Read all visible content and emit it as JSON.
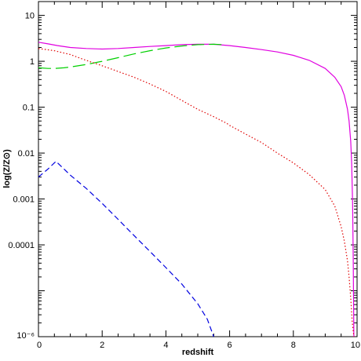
{
  "chart_data": {
    "type": "line",
    "title": "",
    "xlabel": "redshift",
    "ylabel": "log(Z/Z⊙)",
    "xlim": [
      0,
      10
    ],
    "ylim": [
      1e-06,
      20
    ],
    "yscale": "log",
    "grid": false,
    "x_ticks": [
      {
        "value": 0,
        "label": "0"
      },
      {
        "value": 2,
        "label": "2"
      },
      {
        "value": 4,
        "label": "4"
      },
      {
        "value": 6,
        "label": "6"
      },
      {
        "value": 8,
        "label": "8"
      },
      {
        "value": 10,
        "label": "10"
      }
    ],
    "y_ticks": [
      {
        "value": 10,
        "label": "10"
      },
      {
        "value": 1,
        "label": "1"
      },
      {
        "value": 0.1,
        "label": "0.1"
      },
      {
        "value": 0.01,
        "label": "0.01"
      },
      {
        "value": 0.001,
        "label": "0.001"
      },
      {
        "value": 0.0001,
        "label": "0.0001"
      },
      {
        "value": 1e-06,
        "label": "10⁻⁶"
      }
    ],
    "series": [
      {
        "color": "#e000e0",
        "dash": "solid",
        "x": [
          0,
          0.3,
          0.6,
          1.0,
          1.5,
          2.0,
          2.5,
          3.0,
          3.5,
          4.0,
          4.5,
          5.0,
          5.5,
          6.0,
          6.5,
          7.0,
          7.5,
          8.0,
          8.5,
          9.0,
          9.3,
          9.5,
          9.6,
          9.7,
          9.75,
          9.8,
          9.83,
          9.86,
          9.88,
          9.9
        ],
        "y": [
          2.6,
          2.4,
          2.2,
          2.0,
          1.9,
          1.85,
          1.9,
          2.0,
          2.1,
          2.2,
          2.3,
          2.35,
          2.35,
          2.2,
          2.0,
          1.8,
          1.6,
          1.35,
          1.05,
          0.7,
          0.45,
          0.28,
          0.18,
          0.09,
          0.05,
          0.018,
          0.006,
          0.0008,
          5e-05,
          1e-06
        ]
      },
      {
        "color": "#00d000",
        "dash": "longdash",
        "x": [
          0,
          0.3,
          0.5,
          0.8,
          1.0,
          1.5,
          2.0,
          2.5,
          3.0,
          3.5,
          4.0,
          4.5,
          5.0,
          5.5,
          5.8
        ],
        "y": [
          0.72,
          0.7,
          0.7,
          0.72,
          0.75,
          0.85,
          1.0,
          1.2,
          1.45,
          1.7,
          1.95,
          2.15,
          2.3,
          2.35,
          2.3
        ]
      },
      {
        "color": "#e00000",
        "dash": "dotted",
        "x": [
          0,
          0.5,
          1.0,
          1.5,
          2.0,
          2.5,
          3.0,
          3.5,
          4.0,
          4.5,
          5.0,
          5.5,
          5.9,
          6.0,
          6.5,
          7.0,
          7.5,
          8.0,
          8.5,
          9.0,
          9.3,
          9.5,
          9.6,
          9.7,
          9.75,
          9.8,
          9.85,
          9.9
        ],
        "y": [
          1.9,
          1.7,
          1.4,
          1.05,
          0.8,
          0.6,
          0.45,
          0.32,
          0.22,
          0.14,
          0.09,
          0.062,
          0.045,
          0.04,
          0.026,
          0.017,
          0.01,
          0.0061,
          0.0034,
          0.0016,
          0.0007,
          0.00025,
          0.00012,
          4.5e-05,
          2e-05,
          7e-06,
          2e-06,
          1e-06
        ]
      },
      {
        "color": "#0000e0",
        "dash": "dashed",
        "x": [
          0,
          0.3,
          0.55,
          0.8,
          1.0,
          1.5,
          2.0,
          2.5,
          3.0,
          3.5,
          4.0,
          4.5,
          5.0,
          5.3,
          5.5
        ],
        "y": [
          0.003,
          0.0045,
          0.0066,
          0.0045,
          0.0033,
          0.0017,
          0.0008,
          0.00036,
          0.00016,
          7.2e-05,
          3.2e-05,
          1.4e-05,
          5.2e-06,
          2.4e-06,
          1e-06
        ]
      }
    ]
  }
}
